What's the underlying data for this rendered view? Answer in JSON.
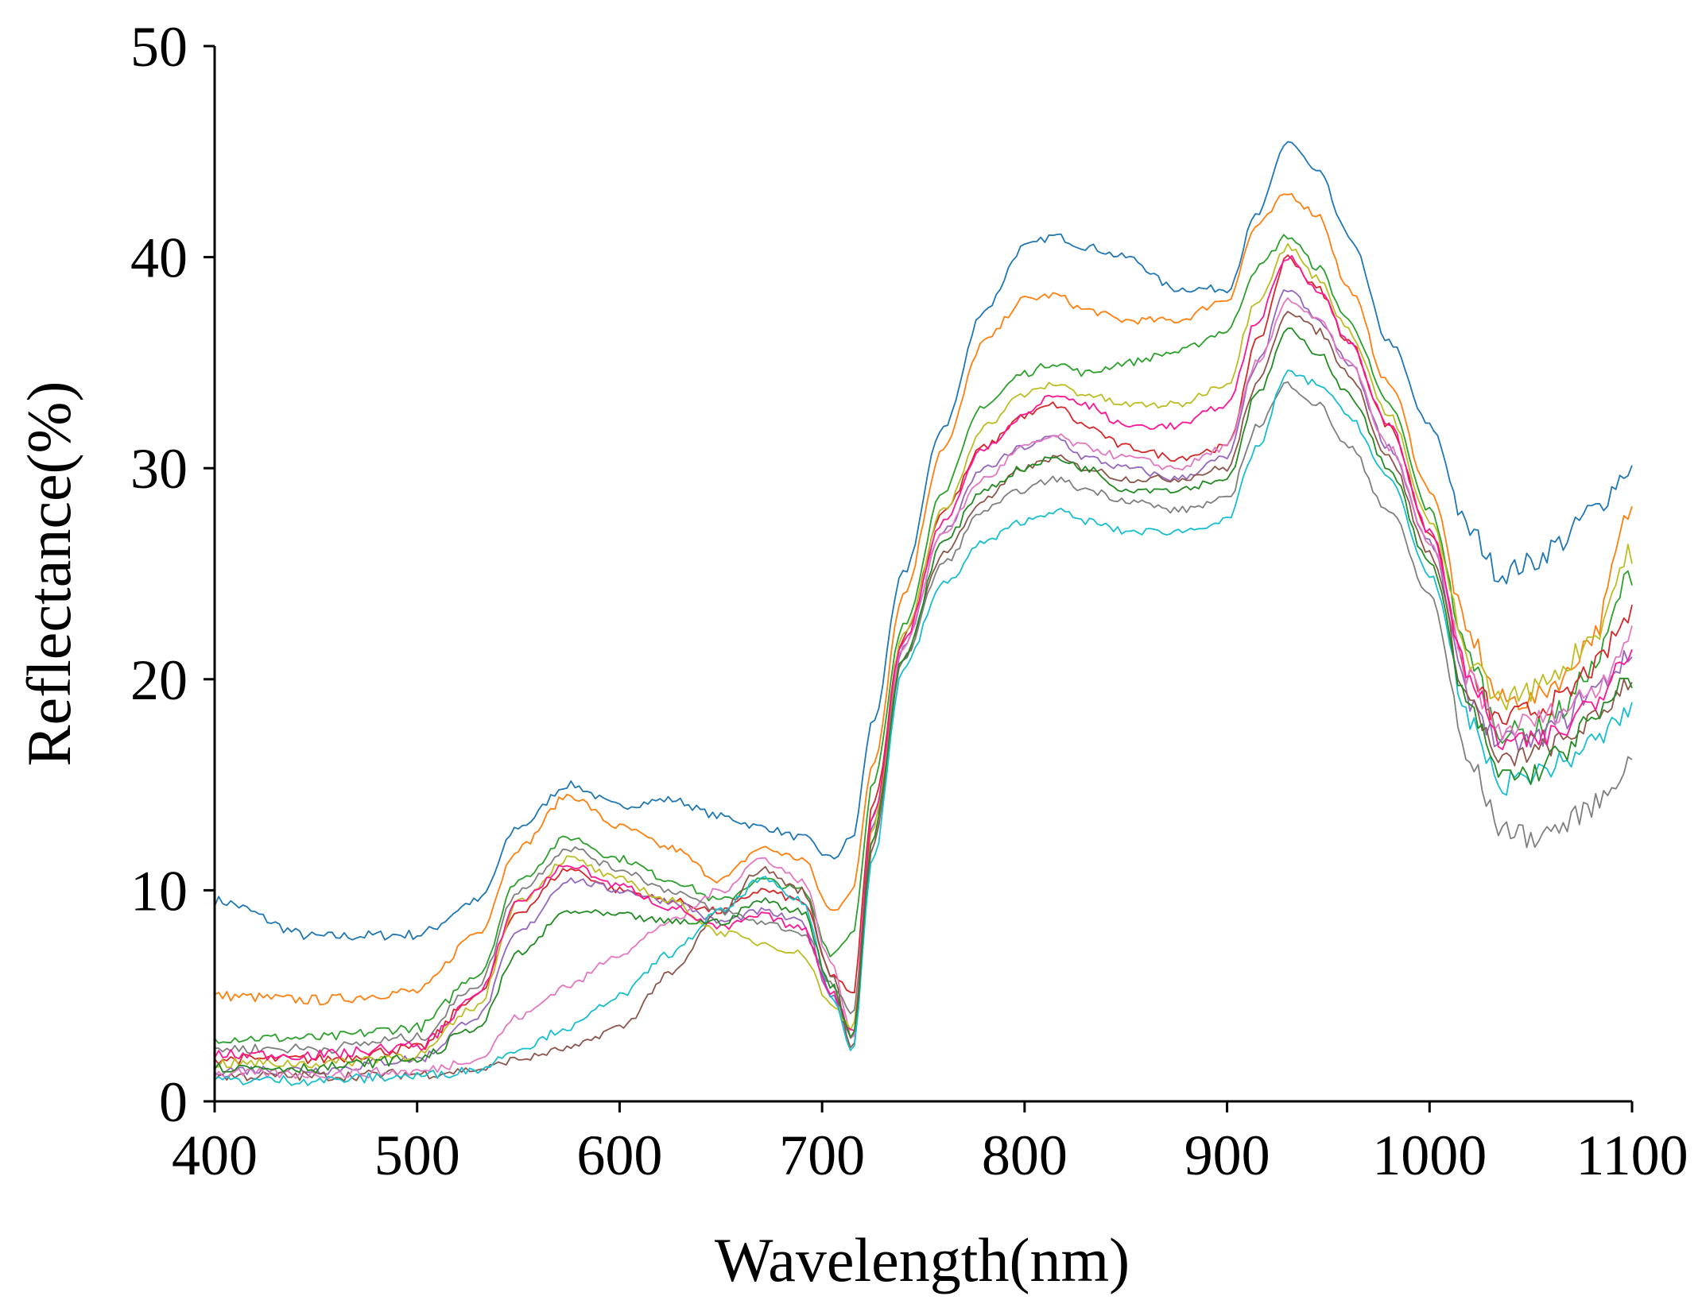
{
  "chart_data": {
    "type": "line",
    "title": "",
    "xlabel": "Wavelength(nm)",
    "ylabel": "Reflectance(%)",
    "xlim": [
      400,
      1100
    ],
    "ylim": [
      0,
      50
    ],
    "xticks": [
      "400",
      "500",
      "600",
      "700",
      "800",
      "900",
      "1000",
      "1100"
    ],
    "yticks": [
      "0",
      "10",
      "20",
      "30",
      "40",
      "50"
    ],
    "grid": false,
    "legend": "none",
    "series_count": 12,
    "colors": [
      "#1f77b4",
      "#ff7f0e",
      "#2ca02c",
      "#d62728",
      "#9467bd",
      "#8c564b",
      "#e377c2",
      "#7f7f7f",
      "#bcbd22",
      "#17becf",
      "#ff1493",
      "#228b22"
    ],
    "x": [
      400,
      450,
      500,
      530,
      550,
      575,
      600,
      625,
      650,
      670,
      690,
      705,
      715,
      725,
      740,
      760,
      780,
      800,
      815,
      830,
      850,
      875,
      900,
      915,
      930,
      945,
      960,
      980,
      1000,
      1020,
      1035,
      1050,
      1065,
      1080,
      1100
    ],
    "series": [
      {
        "values": [
          9.5,
          7.8,
          7.9,
          9.5,
          13,
          15,
          14,
          14.3,
          13.5,
          13,
          12.5,
          11.5,
          12.5,
          18,
          25,
          32,
          37.5,
          40.5,
          41,
          40.5,
          40,
          38.5,
          38.5,
          42,
          45.5,
          44,
          41,
          36,
          32,
          27,
          25,
          25.5,
          26.5,
          28,
          30
        ]
      },
      {
        "values": [
          5,
          4.8,
          5.2,
          8,
          12,
          14.5,
          13,
          12,
          10.5,
          12,
          11.5,
          9,
          10,
          16,
          24,
          31,
          36,
          38,
          38.2,
          37.5,
          37,
          37,
          38,
          41.5,
          43,
          42,
          38.5,
          34,
          29,
          22,
          19,
          19,
          20,
          22,
          28
        ]
      },
      {
        "values": [
          3,
          3,
          3.5,
          6,
          10.5,
          12.5,
          11.5,
          10.5,
          9.5,
          10.5,
          10,
          7,
          8,
          15,
          22.5,
          29,
          33,
          34.5,
          35,
          34.5,
          35,
          35.5,
          36.5,
          39.5,
          41,
          39.5,
          37,
          33,
          28,
          21,
          17.5,
          17.5,
          18.5,
          20.5,
          25
        ]
      },
      {
        "values": [
          2,
          2,
          2.5,
          5,
          9,
          11,
          10,
          9.5,
          9,
          10,
          9.5,
          6,
          5,
          14,
          22,
          28,
          31,
          32.5,
          33,
          32,
          31,
          30.5,
          31,
          36,
          40,
          38.5,
          36,
          32,
          27,
          20,
          18,
          18.5,
          19,
          20.5,
          23
        ]
      },
      {
        "values": [
          1.5,
          1.5,
          2,
          4,
          8,
          10.5,
          10,
          9.5,
          8.5,
          9,
          8.5,
          5,
          3,
          13,
          21.5,
          27,
          30,
          31,
          31.5,
          30.5,
          30,
          29.5,
          30.5,
          35,
          38.5,
          37,
          35,
          31,
          26.5,
          19,
          17,
          17,
          18,
          19.5,
          21
        ]
      },
      {
        "values": [
          1.2,
          1.2,
          1.3,
          1.5,
          2,
          2.5,
          3.5,
          6,
          9,
          11,
          10,
          6,
          2.5,
          12,
          21,
          26,
          28.5,
          30,
          30.5,
          30,
          29.5,
          29.5,
          30,
          34,
          37.5,
          36.5,
          34.5,
          30.5,
          26,
          19,
          16,
          16.5,
          17,
          18,
          20
        ]
      },
      {
        "values": [
          1.3,
          1.3,
          1.4,
          2,
          4,
          5.5,
          7,
          8.5,
          10,
          11.5,
          10.5,
          6.5,
          3,
          12.5,
          21.5,
          27,
          29.5,
          31,
          31.5,
          31,
          30.5,
          30,
          31,
          35,
          38,
          37,
          35,
          31,
          26.5,
          20,
          17.5,
          18,
          18.5,
          19.5,
          22
        ]
      },
      {
        "values": [
          2.5,
          2.5,
          3,
          5.5,
          10,
          12,
          11,
          10,
          9,
          8.5,
          8,
          5.5,
          4,
          13.5,
          21,
          25.5,
          28,
          29,
          29.5,
          29,
          28.5,
          28,
          28.5,
          32,
          34,
          33,
          31,
          28,
          24,
          16,
          13,
          12.5,
          13,
          14,
          16
        ]
      },
      {
        "values": [
          1.8,
          1.8,
          2.2,
          4.5,
          9.5,
          11.5,
          10.5,
          9.5,
          8,
          7.5,
          7,
          4.5,
          3.5,
          13,
          22,
          28,
          32,
          33.5,
          34,
          33.5,
          33,
          33,
          34,
          38,
          40.5,
          39,
          36.5,
          32.5,
          27.5,
          21,
          19,
          19.5,
          20.5,
          22,
          26
        ]
      },
      {
        "values": [
          1,
          1,
          1.2,
          1.5,
          2.5,
          3.5,
          5,
          7,
          9,
          10.5,
          9.5,
          5,
          2.5,
          11.5,
          20.5,
          24.5,
          26.5,
          27.5,
          28,
          27.5,
          27,
          27,
          27.5,
          31,
          34.5,
          34,
          32.5,
          29.5,
          25,
          18,
          15,
          15.5,
          16,
          17,
          18.5
        ]
      },
      {
        "values": [
          2.2,
          2.2,
          2.6,
          5,
          9.5,
          11.2,
          10.2,
          9.2,
          8.2,
          8.8,
          8.2,
          5.2,
          3.2,
          13.5,
          21.8,
          27.5,
          31,
          32.5,
          33.5,
          33,
          32,
          32,
          33,
          37,
          40,
          38.5,
          36,
          32,
          27,
          20,
          17,
          17,
          17.5,
          19,
          21.5
        ]
      },
      {
        "values": [
          1.6,
          1.6,
          2,
          3.5,
          7,
          9,
          8.8,
          8.5,
          8.5,
          9.5,
          9,
          5.5,
          3,
          12.5,
          21,
          26.5,
          29,
          30,
          30.5,
          30,
          29,
          29,
          29.5,
          33.5,
          36.5,
          35.5,
          33.5,
          30,
          25.5,
          18.5,
          15.5,
          15.5,
          16.5,
          18,
          20
        ]
      }
    ]
  }
}
